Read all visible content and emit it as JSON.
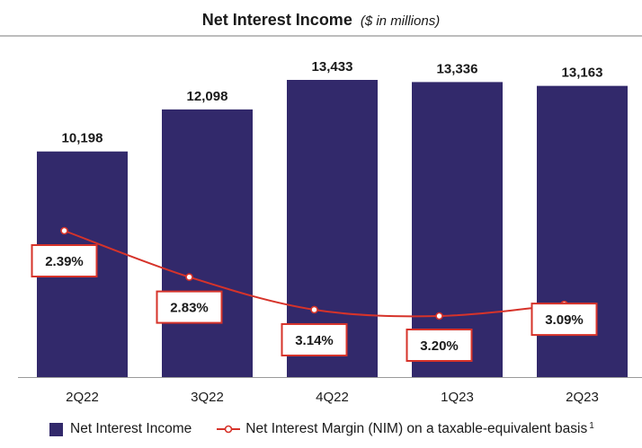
{
  "chart_data": {
    "type": "bar",
    "title": "Net Interest Income",
    "subtitle": "($ in millions)",
    "categories": [
      "2Q22",
      "3Q22",
      "4Q22",
      "1Q23",
      "2Q23"
    ],
    "series": [
      {
        "name": "Net Interest Income",
        "kind": "bar",
        "values": [
          10198,
          12098,
          13433,
          13336,
          13163
        ],
        "labels": [
          "10,198",
          "12,098",
          "13,433",
          "13,336",
          "13,163"
        ],
        "color": "#32296b"
      },
      {
        "name": "Net Interest Margin (NIM) on a taxable-equivalent basis",
        "kind": "line",
        "values": [
          2.39,
          2.83,
          3.14,
          3.2,
          3.09
        ],
        "labels": [
          "2.39%",
          "2.83%",
          "3.14%",
          "3.20%",
          "3.09%"
        ],
        "color": "#d6332a"
      }
    ],
    "bar_ylim": [
      0,
      13433
    ],
    "line_ylim": [
      2.0,
      3.3
    ],
    "legend_position": "bottom",
    "legend_footnote": "1",
    "grid": false
  }
}
